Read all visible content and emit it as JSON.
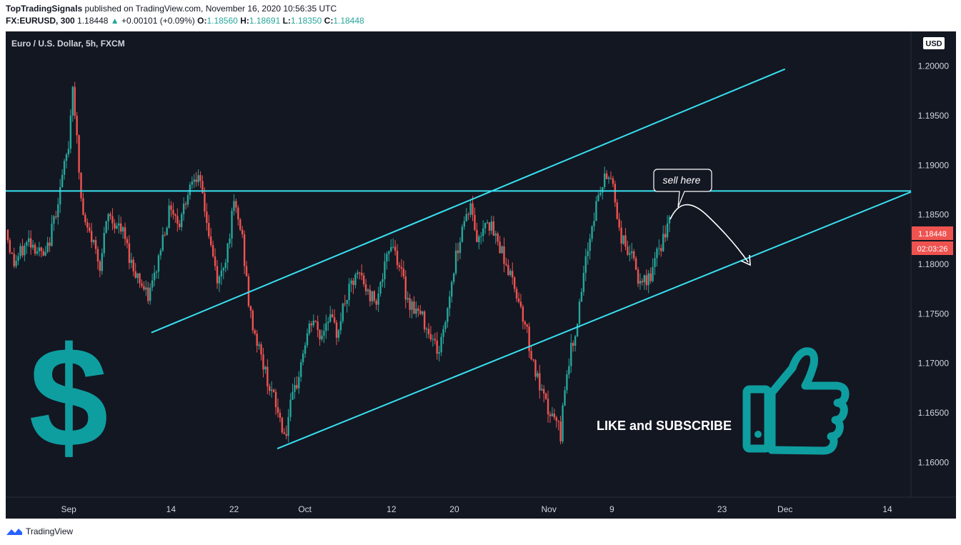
{
  "header": {
    "author": "TopTradingSignals",
    "published_text": "published on TradingView.com, November 16, 2020 10:56:35 UTC",
    "symbol": "FX:EURUSD, 300",
    "last": "1.18448",
    "change_arrow": "▲",
    "change": "+0.00101 (+0.09%)",
    "o_label": "O:",
    "o_value": "1.18560",
    "h_label": "H:",
    "h_value": "1.18691",
    "l_label": "L:",
    "l_value": "1.18350",
    "c_label": "C:",
    "c_value": "1.18448"
  },
  "footer": {
    "brand": "TradingView"
  },
  "colors": {
    "background": "#131722",
    "up": "#26a69a",
    "down": "#ef5350",
    "line": "#38e1f2",
    "teal_graphic": "#0e9ea0"
  },
  "chart_data": {
    "type": "candlestick",
    "title": "Euro / U.S. Dollar, 5h, FXCM",
    "currency_label": "USD",
    "ylim": [
      1.1565,
      1.2035
    ],
    "y_ticks": [
      "1.20000",
      "1.19500",
      "1.19000",
      "1.18500",
      "1.18000",
      "1.17500",
      "1.17000",
      "1.16500",
      "1.16000"
    ],
    "x_ticks": [
      {
        "label": "Sep",
        "t": 0
      },
      {
        "label": "14",
        "t": 13
      },
      {
        "label": "22",
        "t": 21
      },
      {
        "label": "Oct",
        "t": 30
      },
      {
        "label": "12",
        "t": 41
      },
      {
        "label": "20",
        "t": 49
      },
      {
        "label": "Nov",
        "t": 61
      },
      {
        "label": "9",
        "t": 69
      },
      {
        "label": "23",
        "t": 83
      },
      {
        "label": "Dec",
        "t": 91
      },
      {
        "label": "14",
        "t": 104
      }
    ],
    "x_range": [
      -8,
      107
    ],
    "path_t_end": 76.5,
    "price_path": [
      [
        -8,
        1.1835
      ],
      [
        -7,
        1.18
      ],
      [
        -5,
        1.1825
      ],
      [
        -3,
        1.1805
      ],
      [
        -2,
        1.184
      ],
      [
        -1,
        1.188
      ],
      [
        0,
        1.192
      ],
      [
        0.5,
        1.1985
      ],
      [
        1,
        1.193
      ],
      [
        1.5,
        1.187
      ],
      [
        2,
        1.184
      ],
      [
        3,
        1.1825
      ],
      [
        4,
        1.18
      ],
      [
        5,
        1.185
      ],
      [
        7,
        1.183
      ],
      [
        8,
        1.18
      ],
      [
        9,
        1.1785
      ],
      [
        10,
        1.1765
      ],
      [
        11,
        1.179
      ],
      [
        12,
        1.183
      ],
      [
        13,
        1.186
      ],
      [
        14,
        1.184
      ],
      [
        15,
        1.187
      ],
      [
        16,
        1.1895
      ],
      [
        17,
        1.187
      ],
      [
        18,
        1.182
      ],
      [
        19,
        1.178
      ],
      [
        20,
        1.181
      ],
      [
        21,
        1.186
      ],
      [
        22,
        1.183
      ],
      [
        23,
        1.175
      ],
      [
        24,
        1.172
      ],
      [
        25,
        1.169
      ],
      [
        26,
        1.1665
      ],
      [
        27,
        1.164
      ],
      [
        27.5,
        1.1625
      ],
      [
        28,
        1.165
      ],
      [
        29,
        1.168
      ],
      [
        30,
        1.172
      ],
      [
        31,
        1.1745
      ],
      [
        32,
        1.1725
      ],
      [
        33,
        1.175
      ],
      [
        34,
        1.173
      ],
      [
        35,
        1.176
      ],
      [
        36,
        1.178
      ],
      [
        37,
        1.179
      ],
      [
        38,
        1.177
      ],
      [
        39,
        1.1765
      ],
      [
        40,
        1.179
      ],
      [
        41,
        1.1825
      ],
      [
        42,
        1.18
      ],
      [
        43,
        1.1765
      ],
      [
        44,
        1.1755
      ],
      [
        45,
        1.1745
      ],
      [
        46,
        1.173
      ],
      [
        47,
        1.171
      ],
      [
        48,
        1.175
      ],
      [
        49,
        1.18
      ],
      [
        50,
        1.184
      ],
      [
        51,
        1.186
      ],
      [
        52,
        1.182
      ],
      [
        53,
        1.185
      ],
      [
        54,
        1.183
      ],
      [
        55,
        1.1815
      ],
      [
        56,
        1.179
      ],
      [
        57,
        1.177
      ],
      [
        58,
        1.174
      ],
      [
        59,
        1.17
      ],
      [
        60,
        1.167
      ],
      [
        61,
        1.165
      ],
      [
        62,
        1.164
      ],
      [
        62.5,
        1.1625
      ],
      [
        63,
        1.168
      ],
      [
        64,
        1.172
      ],
      [
        65,
        1.176
      ],
      [
        66,
        1.182
      ],
      [
        67,
        1.186
      ],
      [
        68,
        1.1885
      ],
      [
        69,
        1.189
      ],
      [
        70,
        1.183
      ],
      [
        71,
        1.1815
      ],
      [
        72,
        1.18
      ],
      [
        72.5,
        1.1775
      ],
      [
        73,
        1.178
      ],
      [
        74,
        1.179
      ],
      [
        75,
        1.1815
      ],
      [
        76,
        1.1835
      ],
      [
        76.5,
        1.1845
      ]
    ],
    "lines": [
      {
        "name": "horizontal-resistance",
        "points": [
          [
            -8,
            1.1874
          ],
          [
            107,
            1.1874
          ]
        ]
      },
      {
        "name": "channel-upper",
        "points": [
          [
            10.5,
            1.1731
          ],
          [
            91,
            1.1997
          ]
        ]
      },
      {
        "name": "channel-lower",
        "points": [
          [
            26.5,
            1.1614
          ],
          [
            107,
            1.1873
          ]
        ]
      }
    ],
    "annotations": {
      "callout": "sell here",
      "promo": "LIKE and SUBSCRIBE",
      "dollar_symbol": "$"
    },
    "price_label": "1.18448",
    "countdown_label": "02:03:26"
  }
}
